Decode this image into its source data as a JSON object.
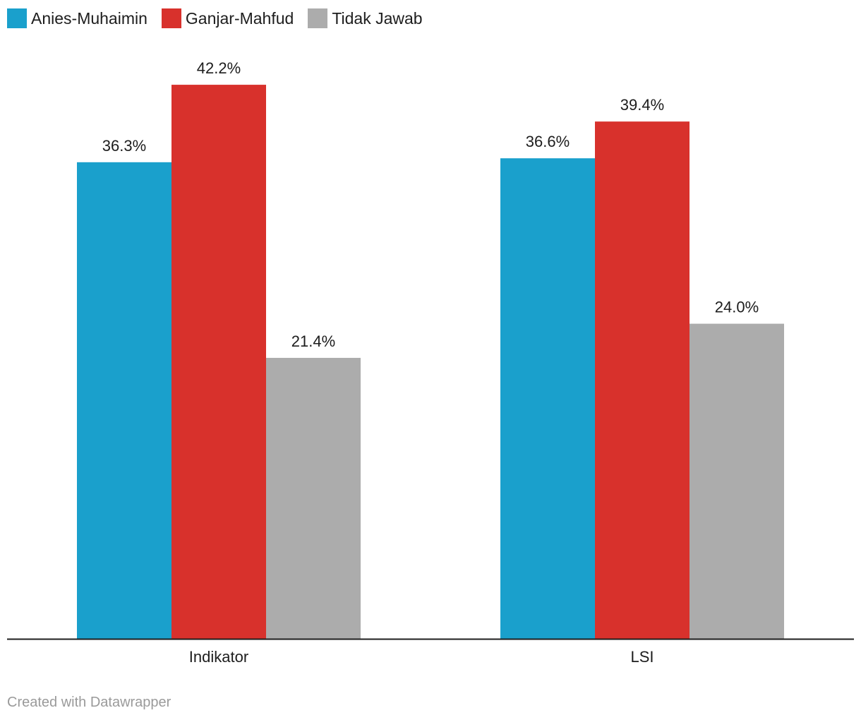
{
  "chart_data": {
    "type": "bar",
    "categories": [
      "Indikator",
      "LSI"
    ],
    "series": [
      {
        "name": "Anies-Muhaimin",
        "values": [
          36.3,
          36.6
        ],
        "labels": [
          "36.3%",
          "36.6%"
        ],
        "color": "#1aa0cc"
      },
      {
        "name": "Ganjar-Mahfud",
        "values": [
          42.2,
          39.4
        ],
        "labels": [
          "42.2%",
          "39.4%"
        ],
        "color": "#d8312c"
      },
      {
        "name": "Tidak Jawab",
        "values": [
          21.4,
          24.0
        ],
        "labels": [
          "21.4%",
          "24.0%"
        ],
        "color": "#acacac"
      }
    ],
    "ylim": [
      0,
      50
    ],
    "grid": false,
    "legend": "top-left"
  },
  "footer": {
    "credit": "Created with Datawrapper"
  }
}
